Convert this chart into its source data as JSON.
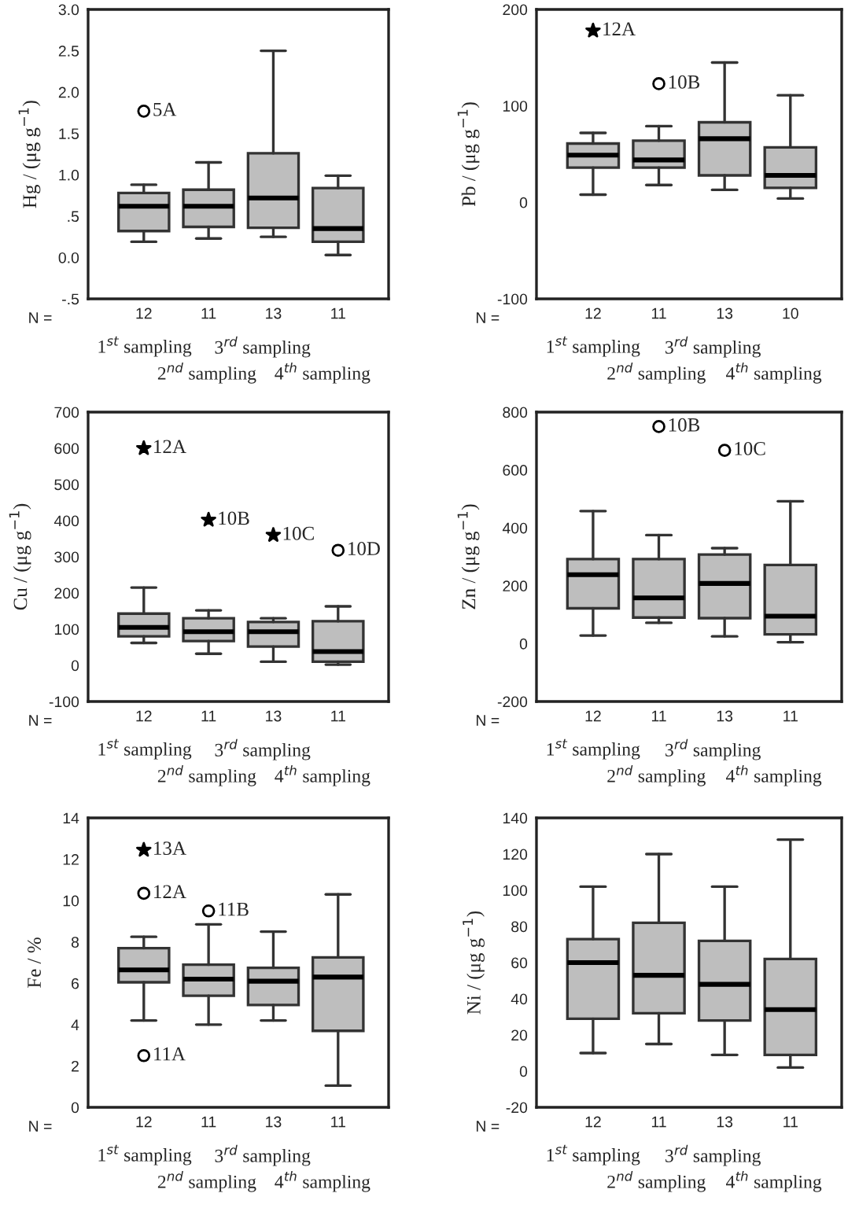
{
  "chart_data": [
    {
      "type": "box",
      "ylabel": "Hg / (μg g$^{−1}$)",
      "categories": [
        "12",
        "11",
        "13",
        "11"
      ],
      "ylim": [
        -0.5,
        3.0
      ],
      "yticks": [
        {
          "value": -0.5,
          "label": "-.5"
        },
        {
          "value": 0,
          "label": "0.0"
        },
        {
          "value": 0.5,
          "label": ".5"
        },
        {
          "value": 1.0,
          "label": "1.0"
        },
        {
          "value": 1.5,
          "label": "1.5"
        },
        {
          "value": 2.0,
          "label": "2.0"
        },
        {
          "value": 2.5,
          "label": "2.5"
        },
        {
          "value": 3.0,
          "label": "3.0"
        }
      ],
      "series": [
        {
          "type": "box",
          "color": "#bebebe",
          "marker": "circle",
          "boxes": [
            {
              "low": 0.19,
              "q1": 0.32,
              "median": 0.62,
              "q3": 0.78,
              "high": 0.88,
              "outliers": [
                1.77
              ]
            },
            {
              "low": 0.23,
              "q1": 0.37,
              "median": 0.62,
              "q3": 0.82,
              "high": 1.15
            },
            {
              "low": 0.25,
              "q1": 0.36,
              "median": 0.72,
              "q3": 1.26,
              "high": 2.5
            },
            {
              "low": 0.03,
              "q1": 0.19,
              "median": 0.35,
              "q3": 0.84,
              "high": 0.99
            }
          ]
        }
      ],
      "annotations": [
        "N =",
        "1$^{st}$ sampling",
        "3$^{rd}$ sampling",
        "2$^{nd}$ sampling",
        "4$^{th}$ sampling",
        "5A"
      ]
    },
    {
      "type": "box",
      "ylabel": "Pb / (μg g$^{−1}$)",
      "categories": [
        "12",
        "11",
        "13",
        "10"
      ],
      "ylim": [
        -100,
        200
      ],
      "yticks": [
        -100,
        0,
        100,
        200
      ],
      "series": [
        {
          "type": "box",
          "color": "#bebebe",
          "marker": "circle",
          "boxes": [
            {
              "low": 8,
              "q1": 36,
              "median": 49,
              "q3": 61,
              "high": 72
            },
            {
              "low": 18,
              "q1": 36,
              "median": 44,
              "q3": 64,
              "high": 79,
              "outliers": [
                123
              ]
            },
            {
              "low": 13,
              "q1": 28,
              "median": 66,
              "q3": 83,
              "high": 145
            },
            {
              "low": 4,
              "q1": 15,
              "median": 28,
              "q3": 57,
              "high": 111
            }
          ]
        },
        {
          "type": "scatter",
          "marker": "star",
          "color": "#000000",
          "x": [
            "12"
          ],
          "values": [
            178
          ]
        }
      ],
      "annotations": [
        "N =",
        "1$^{st}$ sampling",
        "3$^{rd}$ sampling",
        "2$^{nd}$ sampling",
        "4$^{th}$ sampling",
        "10B",
        "12A"
      ]
    },
    {
      "type": "box",
      "ylabel": "Cu / (μg g$^{−1}$)",
      "categories": [
        "12",
        "11",
        "13",
        "11"
      ],
      "ylim": [
        -100,
        700
      ],
      "yticks": [
        -100,
        0,
        100,
        200,
        300,
        400,
        500,
        600,
        700
      ],
      "series": [
        {
          "type": "box",
          "color": "#bebebe",
          "marker": "circle",
          "boxes": [
            {
              "low": 62,
              "q1": 80,
              "median": 105,
              "q3": 143,
              "high": 215
            },
            {
              "low": 32,
              "q1": 67,
              "median": 93,
              "q3": 130,
              "high": 152
            },
            {
              "low": 10,
              "q1": 52,
              "median": 93,
              "q3": 120,
              "high": 130
            },
            {
              "low": 2,
              "q1": 10,
              "median": 38,
              "q3": 122,
              "high": 163,
              "outliers": [
                318
              ]
            }
          ]
        },
        {
          "type": "scatter",
          "marker": "star",
          "color": "#000000",
          "x": [
            "12",
            "11",
            "13"
          ],
          "values": [
            600,
            402,
            360
          ]
        }
      ],
      "annotations": [
        "N =",
        "1$^{st}$ sampling",
        "3$^{rd}$ sampling",
        "2$^{nd}$ sampling",
        "4$^{th}$ sampling",
        "10D",
        "12A",
        "10B",
        "10C"
      ]
    },
    {
      "type": "box",
      "ylabel": "Zn / (μg g$^{−1}$)",
      "categories": [
        "12",
        "11",
        "13",
        "11"
      ],
      "ylim": [
        -200,
        800
      ],
      "yticks": [
        -200,
        0,
        200,
        400,
        600,
        800
      ],
      "series": [
        {
          "type": "box",
          "color": "#bebebe",
          "marker": "circle",
          "boxes": [
            {
              "low": 28,
              "q1": 122,
              "median": 238,
              "q3": 292,
              "high": 458
            },
            {
              "low": 72,
              "q1": 90,
              "median": 158,
              "q3": 292,
              "high": 375,
              "outliers": [
                750
              ]
            },
            {
              "low": 25,
              "q1": 88,
              "median": 208,
              "q3": 308,
              "high": 330,
              "outliers": [
                668
              ]
            },
            {
              "low": 5,
              "q1": 32,
              "median": 95,
              "q3": 272,
              "high": 492
            }
          ]
        }
      ],
      "annotations": [
        "N =",
        "1$^{st}$ sampling",
        "3$^{rd}$ sampling",
        "2$^{nd}$ sampling",
        "4$^{th}$ sampling",
        "10B",
        "10C"
      ]
    },
    {
      "type": "box",
      "ylabel": "Fe / %",
      "categories": [
        "12",
        "11",
        "13",
        "11"
      ],
      "ylim": [
        0,
        14
      ],
      "yticks": [
        0,
        2,
        4,
        6,
        8,
        10,
        12,
        14
      ],
      "series": [
        {
          "type": "box",
          "color": "#bebebe",
          "marker": "circle",
          "boxes": [
            {
              "low": 4.2,
              "q1": 6.05,
              "median": 6.65,
              "q3": 7.7,
              "high": 8.25,
              "outliers": [
                10.35,
                2.5
              ]
            },
            {
              "low": 4.0,
              "q1": 5.4,
              "median": 6.2,
              "q3": 6.9,
              "high": 8.85,
              "outliers": [
                9.5
              ]
            },
            {
              "low": 4.2,
              "q1": 4.95,
              "median": 6.1,
              "q3": 6.75,
              "high": 8.5
            },
            {
              "low": 1.05,
              "q1": 3.7,
              "median": 6.3,
              "q3": 7.25,
              "high": 10.3
            }
          ]
        },
        {
          "type": "scatter",
          "marker": "star",
          "color": "#000000",
          "x": [
            "12"
          ],
          "values": [
            12.45
          ]
        }
      ],
      "annotations": [
        "N =",
        "1$^{st}$ sampling",
        "3$^{rd}$ sampling",
        "2$^{nd}$ sampling",
        "4$^{th}$ sampling",
        "12A",
        "11A",
        "11B",
        "13A"
      ]
    },
    {
      "type": "box",
      "ylabel": "Ni / (μg g$^{−1}$)",
      "categories": [
        "12",
        "11",
        "13",
        "11"
      ],
      "ylim": [
        -20,
        140
      ],
      "yticks": [
        -20,
        0,
        20,
        40,
        60,
        80,
        100,
        120,
        140
      ],
      "series": [
        {
          "type": "box",
          "color": "#bebebe",
          "marker": "circle",
          "boxes": [
            {
              "low": 10,
              "q1": 29,
              "median": 60,
              "q3": 73,
              "high": 102
            },
            {
              "low": 15,
              "q1": 32,
              "median": 53,
              "q3": 82,
              "high": 120
            },
            {
              "low": 9,
              "q1": 28,
              "median": 48,
              "q3": 72,
              "high": 102
            },
            {
              "low": 2,
              "q1": 9,
              "median": 34,
              "q3": 62,
              "high": 128
            }
          ]
        }
      ],
      "annotations": [
        "N =",
        "1$^{st}$ sampling",
        "3$^{rd}$ sampling",
        "2$^{nd}$ sampling",
        "4$^{th}$ sampling"
      ]
    }
  ]
}
